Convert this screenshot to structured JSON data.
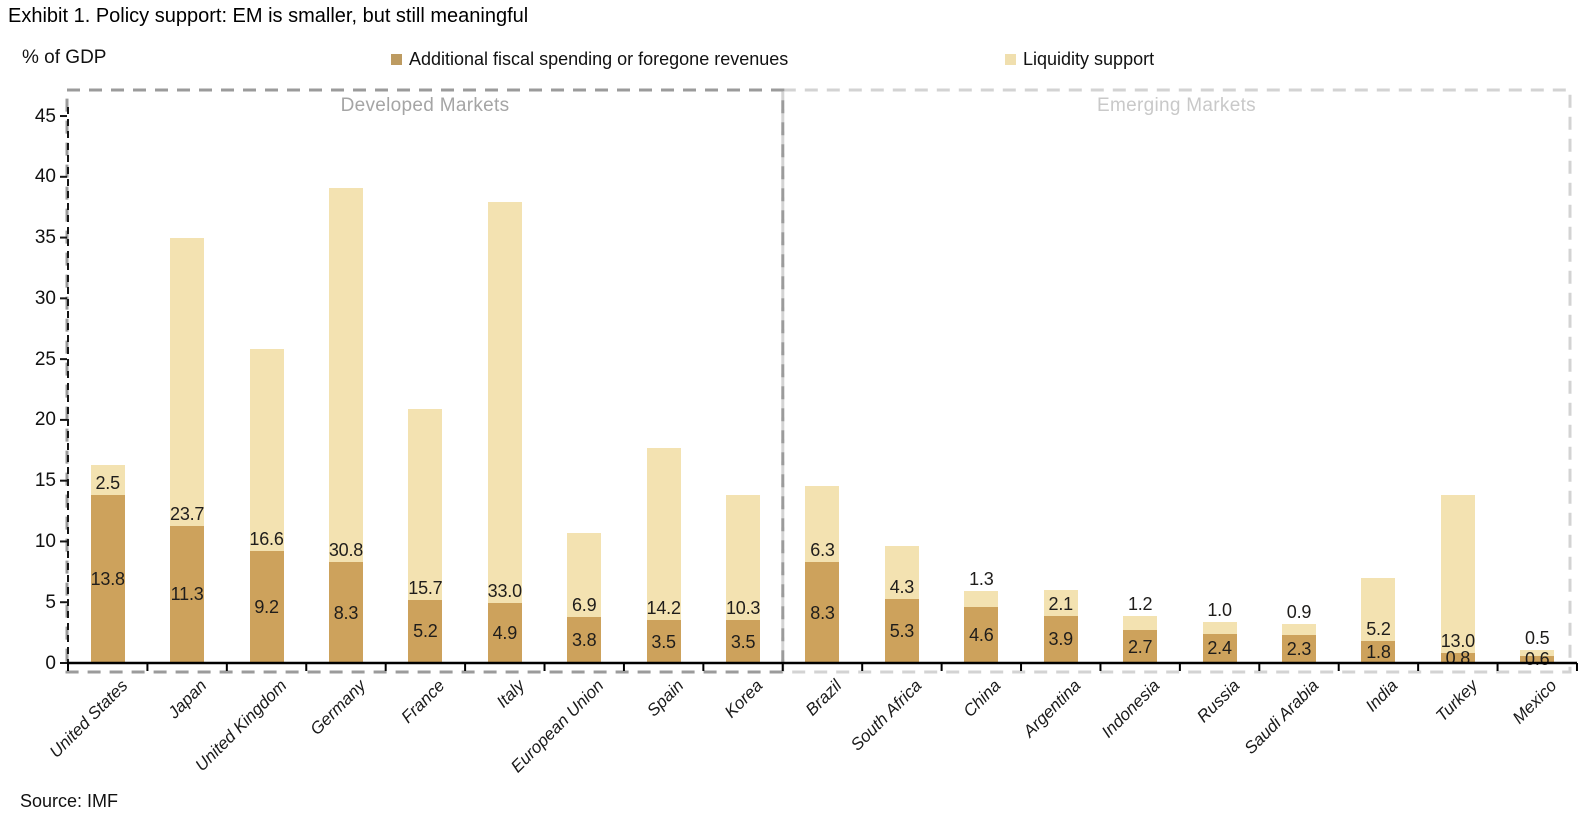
{
  "source": "Source: IMF",
  "y_axis_unit_label": "% of GDP",
  "legend": {
    "marker_colors": [
      "#bd9b61",
      "#f0dfae"
    ]
  },
  "chart_data": {
    "type": "bar",
    "stacked": true,
    "title": "Exhibit 1. Policy support: EM is smaller, but still meaningful",
    "ylabel": "% of GDP",
    "xlabel": "",
    "ylim": [
      0,
      47
    ],
    "yticks": [
      0,
      5,
      10,
      15,
      20,
      25,
      30,
      35,
      40,
      45
    ],
    "grid": false,
    "legend_position": "top",
    "value_label_decimals": 1,
    "groups": [
      {
        "label": "Developed Markets",
        "categories_count": 9,
        "border_color": "#9b9b9b",
        "label_color": "#a5a5a5"
      },
      {
        "label": "Emerging Markets",
        "categories_count": 10,
        "border_color": "#d3d3d3",
        "label_color": "#c9c9c9"
      }
    ],
    "categories": [
      "United States",
      "Japan",
      "United Kingdom",
      "Germany",
      "France",
      "Italy",
      "European Union",
      "Spain",
      "Korea",
      "Brazil",
      "South Africa",
      "China",
      "Argentina",
      "Indonesia",
      "Russia",
      "Saudi Arabia",
      "India",
      "Turkey",
      "Mexico"
    ],
    "series": [
      {
        "name": "Additional fiscal spending or foregone revenues",
        "color": "#cda25c",
        "values": [
          13.8,
          11.3,
          9.2,
          8.3,
          5.2,
          4.9,
          3.8,
          3.5,
          3.5,
          8.3,
          5.3,
          4.6,
          3.9,
          2.7,
          2.4,
          2.3,
          1.8,
          0.8,
          0.6
        ]
      },
      {
        "name": "Liquidity support",
        "color": "#f3e2b1",
        "values": [
          2.5,
          23.7,
          16.6,
          30.8,
          15.7,
          33.0,
          6.9,
          14.2,
          10.3,
          6.3,
          4.3,
          1.3,
          2.1,
          1.2,
          1.0,
          0.9,
          5.2,
          13.0,
          0.5
        ]
      }
    ]
  }
}
